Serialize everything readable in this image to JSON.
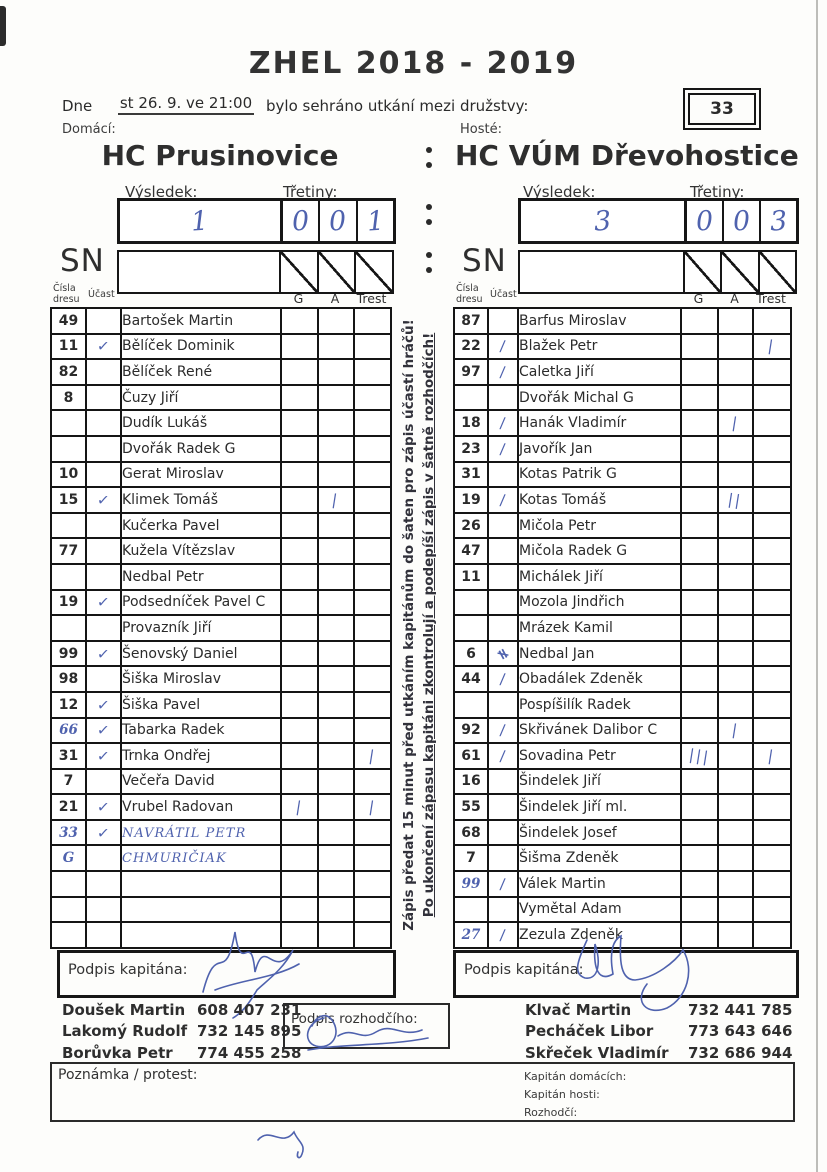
{
  "page": {
    "title": "ZHEL 2018 - 2019",
    "date_label": "Dne",
    "date_value": "st 26. 9. ve 21:00",
    "date_suffix": "bylo sehráno utkání mezi družstvy:",
    "match_number": "33"
  },
  "labels": {
    "home": "Domácí:",
    "guest": "Hosté:",
    "colon": ":",
    "result": "Výsledek:",
    "periods": "Třetiny:",
    "sn": "SN",
    "jersey_line1": "Čísla",
    "jersey_line2": "dresu",
    "attendance": "Účast",
    "goals": "G",
    "assists": "A",
    "penalty": "Trest",
    "captain_signature": "Podpis kapitána:",
    "referee_signature": "Podpis rozhodčího:",
    "note_protest": "Poznámka / protest:",
    "captain_home": "Kapitán domácích:",
    "captain_guest": "Kapitán hosti:",
    "referee": "Rozhodčí:"
  },
  "notice": {
    "line1": "Zápis předat 15 minut před utkáním kapitánům do šaten pro zápis účastí hráčů!",
    "line2": "Po ukončení zápasu kapitáni zkontrolují a podepíší zápis v šatně rozhodčích!"
  },
  "home_team": {
    "name": "HC Prusinovice",
    "result": "1",
    "periods": [
      "0",
      "0",
      "1"
    ],
    "roster": [
      {
        "num": "49",
        "att": "",
        "name": "Bartošek Martin"
      },
      {
        "num": "11",
        "att": "check",
        "name": "Bělíček Dominik"
      },
      {
        "num": "82",
        "att": "",
        "name": "Bělíček René"
      },
      {
        "num": "8",
        "att": "",
        "name": "Čuzy Jiří"
      },
      {
        "num": "",
        "att": "",
        "name": "Dudík Lukáš"
      },
      {
        "num": "",
        "att": "",
        "name": "Dvořák Radek G"
      },
      {
        "num": "10",
        "att": "",
        "name": "Gerat Miroslav"
      },
      {
        "num": "15",
        "att": "check",
        "name": "Klimek Tomáš",
        "a": "|"
      },
      {
        "num": "",
        "att": "",
        "name": "Kučerka Pavel"
      },
      {
        "num": "77",
        "att": "",
        "name": "Kužela Vítězslav"
      },
      {
        "num": "",
        "att": "",
        "name": "Nedbal Petr"
      },
      {
        "num": "19",
        "att": "check",
        "name": "Podsedníček Pavel C"
      },
      {
        "num": "",
        "att": "",
        "name": "Provazník Jiří"
      },
      {
        "num": "99",
        "att": "check",
        "name": "Šenovský Daniel"
      },
      {
        "num": "98",
        "att": "",
        "name": "Šiška Miroslav"
      },
      {
        "num": "12",
        "att": "check",
        "name": "Šiška Pavel"
      },
      {
        "num": "66",
        "numHand": true,
        "att": "check",
        "name": "Tabarka Radek"
      },
      {
        "num": "31",
        "att": "check",
        "name": "Trnka Ondřej",
        "t": "|"
      },
      {
        "num": "7",
        "att": "",
        "name": "Večeřa David"
      },
      {
        "num": "21",
        "att": "check",
        "name": "Vrubel Radovan",
        "g": "|",
        "t": "|"
      },
      {
        "num": "33",
        "numHand": true,
        "att": "check",
        "name": "NAVRÁTIL PETR",
        "nameHand": true
      },
      {
        "num": "G",
        "numHand": true,
        "att": "",
        "name": "CHMURIČIAK",
        "nameHand": true
      },
      {
        "num": "",
        "att": "",
        "name": ""
      },
      {
        "num": "",
        "att": "",
        "name": ""
      },
      {
        "num": "",
        "att": "",
        "name": ""
      }
    ]
  },
  "guest_team": {
    "name": "HC VÚM Dřevohostice",
    "result": "3",
    "periods": [
      "0",
      "0",
      "3"
    ],
    "roster": [
      {
        "num": "87",
        "att": "",
        "name": "Barfus Miroslav"
      },
      {
        "num": "22",
        "att": "slash",
        "name": "Blažek Petr",
        "t": "|"
      },
      {
        "num": "97",
        "att": "slash",
        "name": "Caletka Jiří"
      },
      {
        "num": "",
        "att": "",
        "name": "Dvořák Michal G"
      },
      {
        "num": "18",
        "att": "slash",
        "name": "Hanák Vladimír",
        "a": "|"
      },
      {
        "num": "23",
        "att": "slash",
        "name": "Javořík Jan"
      },
      {
        "num": "31",
        "att": "",
        "name": "Kotas Patrik G"
      },
      {
        "num": "19",
        "att": "slash",
        "name": "Kotas Tomáš",
        "a": "||"
      },
      {
        "num": "26",
        "att": "",
        "name": "Mičola Petr"
      },
      {
        "num": "47",
        "att": "",
        "name": "Mičola Radek G"
      },
      {
        "num": "11",
        "att": "",
        "name": "Michálek Jiří"
      },
      {
        "num": "",
        "att": "",
        "name": "Mozola Jindřich"
      },
      {
        "num": "",
        "att": "",
        "name": "Mrázek Kamil"
      },
      {
        "num": "6",
        "att": "scribble",
        "name": "Nedbal Jan"
      },
      {
        "num": "44",
        "att": "slash",
        "name": "Obadálek Zdeněk"
      },
      {
        "num": "",
        "att": "",
        "name": "Pospíšilík Radek"
      },
      {
        "num": "92",
        "att": "slash",
        "name": "Skřivánek Dalibor C",
        "a": "|"
      },
      {
        "num": "61",
        "att": "slash",
        "name": "Sovadina Petr",
        "g": "|||",
        "t": "|"
      },
      {
        "num": "16",
        "att": "",
        "name": "Šindelek Jiří"
      },
      {
        "num": "55",
        "att": "",
        "name": "Šindelek Jiří ml."
      },
      {
        "num": "68",
        "att": "",
        "name": "Šindelek Josef"
      },
      {
        "num": "7",
        "att": "",
        "name": "Šišma Zdeněk"
      },
      {
        "num": "99",
        "numHand": true,
        "att": "slash",
        "name": "Válek Martin"
      },
      {
        "num": "",
        "att": "",
        "name": "Vymětal Adam"
      },
      {
        "num": "27",
        "numHand": true,
        "att": "slash",
        "name": "Zezula Zdeněk"
      }
    ]
  },
  "contacts_home": [
    {
      "name": "Doušek Martin",
      "phone": "608 407 231"
    },
    {
      "name": "Lakomý Rudolf",
      "phone": "732 145 895"
    },
    {
      "name": "Borůvka Petr",
      "phone": "774 455 258"
    }
  ],
  "contacts_guest": [
    {
      "name": "Klvač Martin",
      "phone": "732 441 785"
    },
    {
      "name": "Pecháček Libor",
      "phone": "773 643 646"
    },
    {
      "name": "Skřeček Vladimír",
      "phone": "732 686 944"
    }
  ]
}
